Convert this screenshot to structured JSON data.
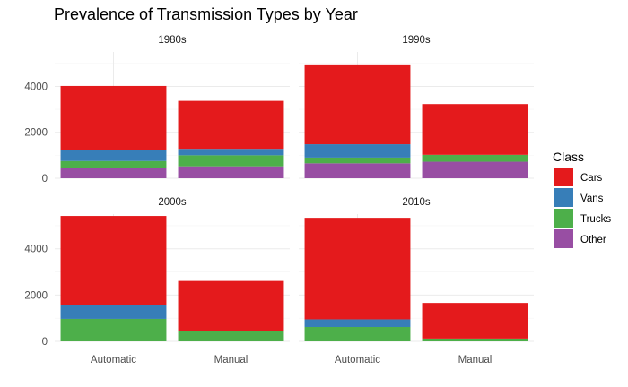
{
  "chart_data": {
    "type": "bar",
    "stacked": true,
    "title": "Prevalence of Transmission Types by Year",
    "xlabel": "",
    "ylabel": "",
    "categories": [
      "Automatic",
      "Manual"
    ],
    "y_ticks": [
      0,
      2000,
      4000
    ],
    "ylim": [
      0,
      5500
    ],
    "grid": true,
    "legend": {
      "title": "Class",
      "position": "right",
      "items": [
        {
          "name": "Cars",
          "color": "#E41A1C"
        },
        {
          "name": "Vans",
          "color": "#377EB8"
        },
        {
          "name": "Trucks",
          "color": "#4DAF4A"
        },
        {
          "name": "Other",
          "color": "#984EA3"
        }
      ]
    },
    "facets": [
      {
        "label": "1980s",
        "series": [
          {
            "name": "Other",
            "values": [
              450,
              520
            ]
          },
          {
            "name": "Trucks",
            "values": [
              300,
              480
            ]
          },
          {
            "name": "Vans",
            "values": [
              490,
              280
            ]
          },
          {
            "name": "Cars",
            "values": [
              2780,
              2090
            ]
          }
        ]
      },
      {
        "label": "1990s",
        "series": [
          {
            "name": "Other",
            "values": [
              650,
              720
            ]
          },
          {
            "name": "Trucks",
            "values": [
              250,
              300
            ]
          },
          {
            "name": "Vans",
            "values": [
              580,
              0
            ]
          },
          {
            "name": "Cars",
            "values": [
              3440,
              2210
            ]
          }
        ]
      },
      {
        "label": "2000s",
        "series": [
          {
            "name": "Other",
            "values": [
              0,
              0
            ]
          },
          {
            "name": "Trucks",
            "values": [
              970,
              460
            ]
          },
          {
            "name": "Vans",
            "values": [
              600,
              0
            ]
          },
          {
            "name": "Cars",
            "values": [
              3850,
              2150
            ]
          }
        ]
      },
      {
        "label": "2010s",
        "series": [
          {
            "name": "Other",
            "values": [
              0,
              0
            ]
          },
          {
            "name": "Trucks",
            "values": [
              620,
              120
            ]
          },
          {
            "name": "Vans",
            "values": [
              330,
              0
            ]
          },
          {
            "name": "Cars",
            "values": [
              4390,
              1540
            ]
          }
        ]
      }
    ]
  }
}
